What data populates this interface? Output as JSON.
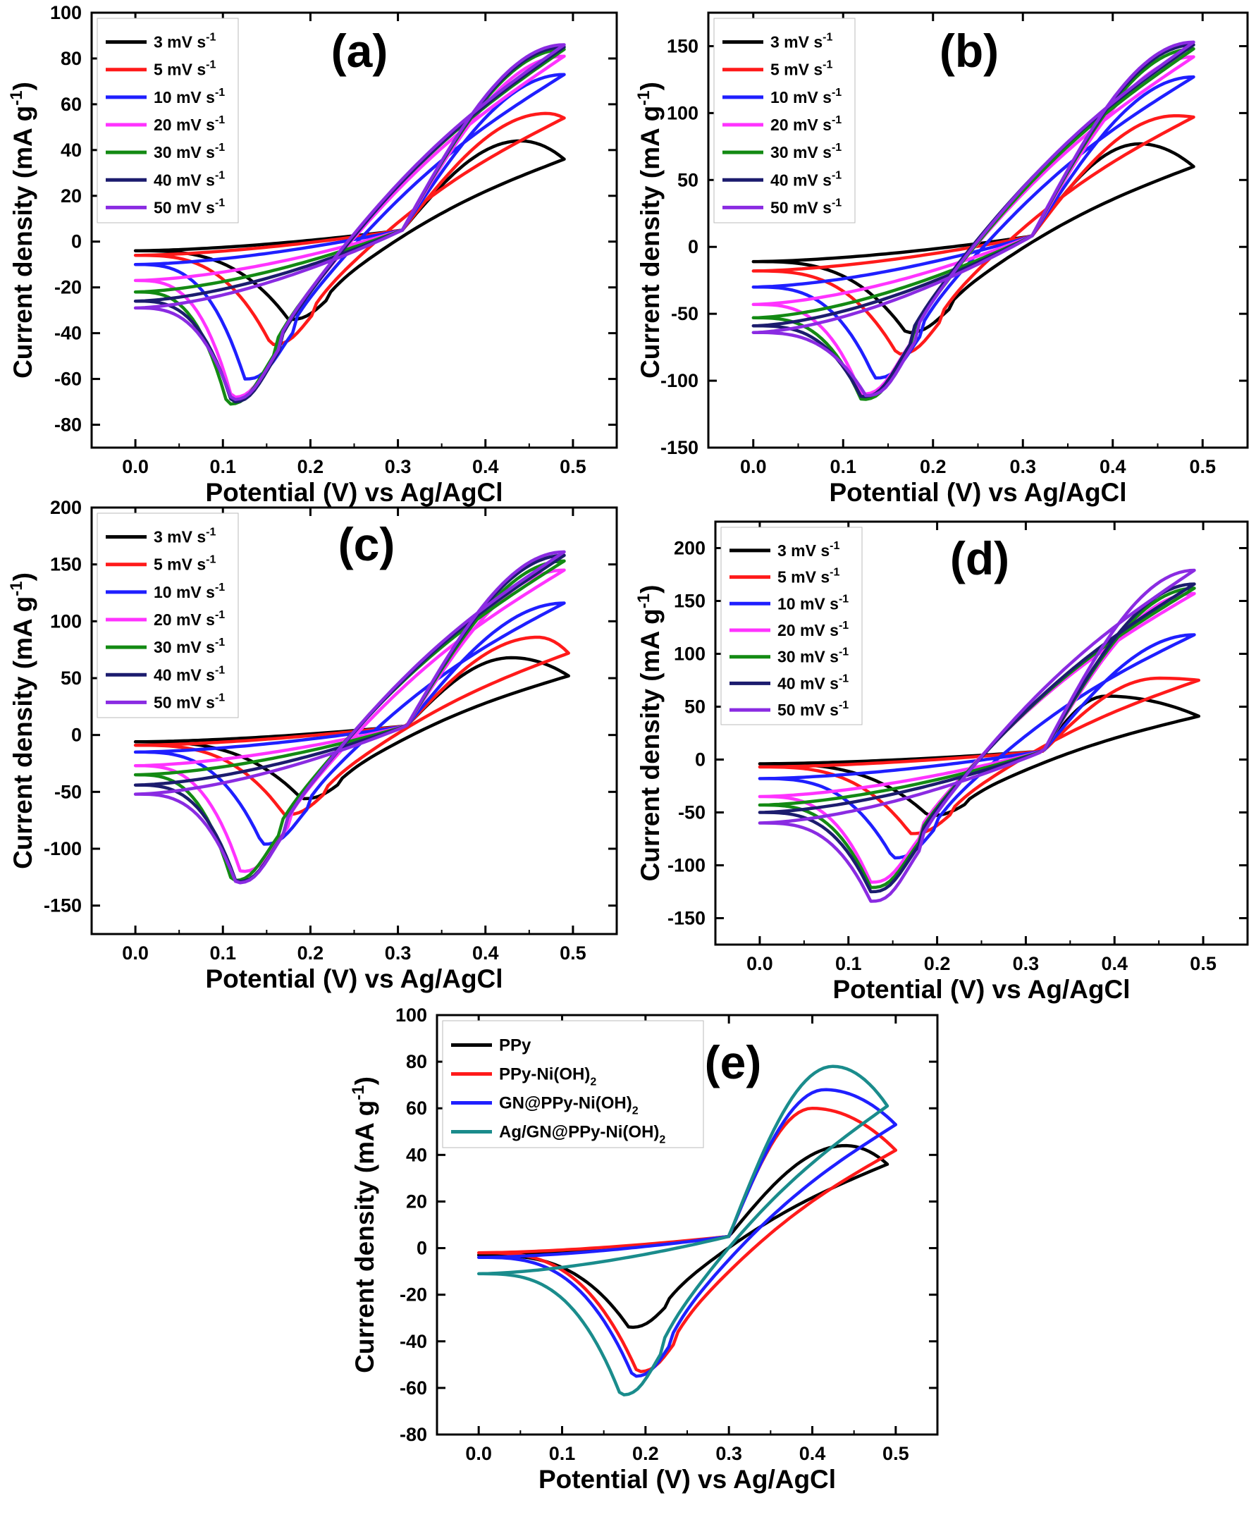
{
  "colors": {
    "black": "#000000",
    "red": "#ff1a1a",
    "blue": "#1f1fff",
    "magenta": "#ff33ff",
    "green": "#138a13",
    "navy": "#1c1c6e",
    "violet": "#8a2be2",
    "teal": "#1a8c8c"
  },
  "chart_data": [
    {
      "type": "line",
      "panel_label": "(a)",
      "xlabel": "Potential (V) vs Ag/AgCl",
      "ylabel": "Current density (mA g-1)",
      "ylabel_main": "Current density (mA g",
      "ylabel_sup": "-1",
      "ylabel_tail": ")",
      "xlim": [
        -0.05,
        0.55
      ],
      "ylim": [
        -90,
        100
      ],
      "xticks": [
        0.0,
        0.1,
        0.2,
        0.3,
        0.4,
        0.5
      ],
      "xtick_labels": [
        "0.0",
        "0.1",
        "0.2",
        "0.3",
        "0.4",
        "0.5"
      ],
      "yticks": [
        -80,
        -60,
        -40,
        -20,
        0,
        20,
        40,
        60,
        80,
        100
      ],
      "ytick_labels": [
        "-80",
        "-60",
        "-40",
        "-20",
        "0",
        "20",
        "40",
        "60",
        "80",
        "100"
      ],
      "legend_position": "top-left",
      "series": [
        {
          "name": "3 mV s-1",
          "label_main": "3 mV s",
          "label_sup": "-1",
          "color": "#000000",
          "cycle": {
            "x0": 0.0,
            "x1": 0.49,
            "y_start": -4,
            "y_end": 36,
            "peak_x": 0.44,
            "peak_y": 44,
            "valley_x": 0.175,
            "valley_y": -34,
            "cross_x": 0.305,
            "cross_y": 5
          }
        },
        {
          "name": "5 mV s-1",
          "label_main": "5 mV s",
          "label_sup": "-1",
          "color": "#ff1a1a",
          "cycle": {
            "x0": 0.0,
            "x1": 0.49,
            "y_start": -6,
            "y_end": 54,
            "peak_x": 0.47,
            "peak_y": 56,
            "valley_x": 0.155,
            "valley_y": -45,
            "cross_x": 0.305,
            "cross_y": 5
          }
        },
        {
          "name": "10 mV s-1",
          "label_main": "10 mV s",
          "label_sup": "-1",
          "color": "#1f1fff",
          "cycle": {
            "x0": 0.0,
            "x1": 0.49,
            "y_start": -10,
            "y_end": 73,
            "peak_x": 0.49,
            "peak_y": 73,
            "valley_x": 0.125,
            "valley_y": -60,
            "cross_x": 0.305,
            "cross_y": 5
          }
        },
        {
          "name": "20 mV s-1",
          "label_main": "20 mV s",
          "label_sup": "-1",
          "color": "#ff33ff",
          "cycle": {
            "x0": 0.0,
            "x1": 0.49,
            "y_start": -17,
            "y_end": 81,
            "peak_x": 0.49,
            "peak_y": 81,
            "valley_x": 0.11,
            "valley_y": -68,
            "cross_x": 0.305,
            "cross_y": 5
          }
        },
        {
          "name": "30 mV s-1",
          "label_main": "30 mV s",
          "label_sup": "-1",
          "color": "#138a13",
          "cycle": {
            "x0": 0.0,
            "x1": 0.49,
            "y_start": -22,
            "y_end": 84,
            "peak_x": 0.49,
            "peak_y": 84,
            "valley_x": 0.105,
            "valley_y": -71,
            "cross_x": 0.305,
            "cross_y": 5
          }
        },
        {
          "name": "40 mV s-1",
          "label_main": "40 mV s",
          "label_sup": "-1",
          "color": "#1c1c6e",
          "cycle": {
            "x0": 0.0,
            "x1": 0.49,
            "y_start": -26,
            "y_end": 85,
            "peak_x": 0.49,
            "peak_y": 85,
            "valley_x": 0.11,
            "valley_y": -70,
            "cross_x": 0.305,
            "cross_y": 5
          }
        },
        {
          "name": "50 mV s-1",
          "label_main": "50 mV s",
          "label_sup": "-1",
          "color": "#8a2be2",
          "cycle": {
            "x0": 0.0,
            "x1": 0.49,
            "y_start": -29,
            "y_end": 86,
            "peak_x": 0.49,
            "peak_y": 86,
            "valley_x": 0.11,
            "valley_y": -69,
            "cross_x": 0.305,
            "cross_y": 5
          }
        }
      ]
    },
    {
      "type": "line",
      "panel_label": "(b)",
      "xlabel": "Potential (V) vs Ag/AgCl",
      "ylabel": "Current density (mA g-1)",
      "ylabel_main": "Current density (mA g",
      "ylabel_sup": "-1",
      "ylabel_tail": ")",
      "xlim": [
        -0.05,
        0.55
      ],
      "ylim": [
        -150,
        175
      ],
      "xticks": [
        0.0,
        0.1,
        0.2,
        0.3,
        0.4,
        0.5
      ],
      "xtick_labels": [
        "0.0",
        "0.1",
        "0.2",
        "0.3",
        "0.4",
        "0.5"
      ],
      "yticks": [
        -150,
        -100,
        -50,
        0,
        50,
        100,
        150
      ],
      "ytick_labels": [
        "-150",
        "-100",
        "-50",
        "0",
        "50",
        "100",
        "150"
      ],
      "legend_position": "top-left",
      "series": [
        {
          "name": "3 mV s-1",
          "label_main": "3 mV s",
          "label_sup": "-1",
          "color": "#000000",
          "cycle": {
            "x0": 0.0,
            "x1": 0.49,
            "y_start": -11,
            "y_end": 60,
            "peak_x": 0.43,
            "peak_y": 77,
            "valley_x": 0.17,
            "valley_y": -64,
            "cross_x": 0.31,
            "cross_y": 8
          }
        },
        {
          "name": "5 mV s-1",
          "label_main": "5 mV s",
          "label_sup": "-1",
          "color": "#ff1a1a",
          "cycle": {
            "x0": 0.0,
            "x1": 0.49,
            "y_start": -18,
            "y_end": 97,
            "peak_x": 0.47,
            "peak_y": 98,
            "valley_x": 0.16,
            "valley_y": -80,
            "cross_x": 0.31,
            "cross_y": 8
          }
        },
        {
          "name": "10 mV s-1",
          "label_main": "10 mV s",
          "label_sup": "-1",
          "color": "#1f1fff",
          "cycle": {
            "x0": 0.0,
            "x1": 0.49,
            "y_start": -30,
            "y_end": 127,
            "peak_x": 0.49,
            "peak_y": 127,
            "valley_x": 0.135,
            "valley_y": -98,
            "cross_x": 0.31,
            "cross_y": 8
          }
        },
        {
          "name": "20 mV s-1",
          "label_main": "20 mV s",
          "label_sup": "-1",
          "color": "#ff33ff",
          "cycle": {
            "x0": 0.0,
            "x1": 0.49,
            "y_start": -43,
            "y_end": 142,
            "peak_x": 0.49,
            "peak_y": 142,
            "valley_x": 0.12,
            "valley_y": -110,
            "cross_x": 0.31,
            "cross_y": 8
          }
        },
        {
          "name": "30 mV s-1",
          "label_main": "30 mV s",
          "label_sup": "-1",
          "color": "#138a13",
          "cycle": {
            "x0": 0.0,
            "x1": 0.49,
            "y_start": -53,
            "y_end": 148,
            "peak_x": 0.49,
            "peak_y": 148,
            "valley_x": 0.12,
            "valley_y": -114,
            "cross_x": 0.31,
            "cross_y": 8
          }
        },
        {
          "name": "40 mV s-1",
          "label_main": "40 mV s",
          "label_sup": "-1",
          "color": "#1c1c6e",
          "cycle": {
            "x0": 0.0,
            "x1": 0.49,
            "y_start": -59,
            "y_end": 151,
            "peak_x": 0.49,
            "peak_y": 151,
            "valley_x": 0.12,
            "valley_y": -112,
            "cross_x": 0.31,
            "cross_y": 8
          }
        },
        {
          "name": "50 mV s-1",
          "label_main": "50 mV s",
          "label_sup": "-1",
          "color": "#8a2be2",
          "cycle": {
            "x0": 0.0,
            "x1": 0.49,
            "y_start": -64,
            "y_end": 153,
            "peak_x": 0.49,
            "peak_y": 153,
            "valley_x": 0.125,
            "valley_y": -111,
            "cross_x": 0.31,
            "cross_y": 8
          }
        }
      ]
    },
    {
      "type": "line",
      "panel_label": "(c)",
      "xlabel": "Potential (V) vs Ag/AgCl",
      "ylabel": "Current density (mA g-1)",
      "ylabel_main": "Current density (mA g",
      "ylabel_sup": "-1",
      "ylabel_tail": ")",
      "xlim": [
        -0.05,
        0.55
      ],
      "ylim": [
        -175,
        200
      ],
      "xticks": [
        0.0,
        0.1,
        0.2,
        0.3,
        0.4,
        0.5
      ],
      "xtick_labels": [
        "0.0",
        "0.1",
        "0.2",
        "0.3",
        "0.4",
        "0.5"
      ],
      "yticks": [
        -150,
        -100,
        -50,
        0,
        50,
        100,
        150,
        200
      ],
      "ytick_labels": [
        "-150",
        "-100",
        "-50",
        "0",
        "50",
        "100",
        "150",
        "200"
      ],
      "legend_position": "top-left",
      "series": [
        {
          "name": "3 mV s-1",
          "label_main": "3 mV s",
          "label_sup": "-1",
          "color": "#000000",
          "cycle": {
            "x0": 0.0,
            "x1": 0.495,
            "y_start": -6,
            "y_end": 52,
            "peak_x": 0.43,
            "peak_y": 68,
            "valley_x": 0.19,
            "valley_y": -56,
            "cross_x": 0.31,
            "cross_y": 8
          }
        },
        {
          "name": "5 mV s-1",
          "label_main": "5 mV s",
          "label_sup": "-1",
          "color": "#ff1a1a",
          "cycle": {
            "x0": 0.0,
            "x1": 0.495,
            "y_start": -9,
            "y_end": 72,
            "peak_x": 0.46,
            "peak_y": 86,
            "valley_x": 0.17,
            "valley_y": -70,
            "cross_x": 0.31,
            "cross_y": 8
          }
        },
        {
          "name": "10 mV s-1",
          "label_main": "10 mV s",
          "label_sup": "-1",
          "color": "#1f1fff",
          "cycle": {
            "x0": 0.0,
            "x1": 0.49,
            "y_start": -15,
            "y_end": 116,
            "peak_x": 0.49,
            "peak_y": 116,
            "valley_x": 0.145,
            "valley_y": -96,
            "cross_x": 0.31,
            "cross_y": 8
          }
        },
        {
          "name": "20 mV s-1",
          "label_main": "20 mV s",
          "label_sup": "-1",
          "color": "#ff33ff",
          "cycle": {
            "x0": 0.0,
            "x1": 0.49,
            "y_start": -27,
            "y_end": 145,
            "peak_x": 0.49,
            "peak_y": 145,
            "valley_x": 0.12,
            "valley_y": -120,
            "cross_x": 0.31,
            "cross_y": 8
          }
        },
        {
          "name": "30 mV s-1",
          "label_main": "30 mV s",
          "label_sup": "-1",
          "color": "#138a13",
          "cycle": {
            "x0": 0.0,
            "x1": 0.49,
            "y_start": -35,
            "y_end": 153,
            "peak_x": 0.49,
            "peak_y": 153,
            "valley_x": 0.11,
            "valley_y": -128,
            "cross_x": 0.31,
            "cross_y": 8
          }
        },
        {
          "name": "40 mV s-1",
          "label_main": "40 mV s",
          "label_sup": "-1",
          "color": "#1c1c6e",
          "cycle": {
            "x0": 0.0,
            "x1": 0.49,
            "y_start": -44,
            "y_end": 158,
            "peak_x": 0.49,
            "peak_y": 158,
            "valley_x": 0.115,
            "valley_y": -129,
            "cross_x": 0.31,
            "cross_y": 8
          }
        },
        {
          "name": "50 mV s-1",
          "label_main": "50 mV s",
          "label_sup": "-1",
          "color": "#8a2be2",
          "cycle": {
            "x0": 0.0,
            "x1": 0.49,
            "y_start": -52,
            "y_end": 161,
            "peak_x": 0.49,
            "peak_y": 161,
            "valley_x": 0.115,
            "valley_y": -130,
            "cross_x": 0.31,
            "cross_y": 8
          }
        }
      ]
    },
    {
      "type": "line",
      "panel_label": "(d)",
      "xlabel": "Potential (V) vs Ag/AgCl",
      "ylabel": "Current density (mA g-1)",
      "ylabel_main": "Current density (mA g",
      "ylabel_sup": "-1",
      "ylabel_tail": ")",
      "xlim": [
        -0.05,
        0.55
      ],
      "ylim": [
        -175,
        225
      ],
      "xticks": [
        0.0,
        0.1,
        0.2,
        0.3,
        0.4,
        0.5
      ],
      "xtick_labels": [
        "0.0",
        "0.1",
        "0.2",
        "0.3",
        "0.4",
        "0.5"
      ],
      "yticks": [
        -150,
        -100,
        -50,
        0,
        50,
        100,
        150,
        200
      ],
      "ytick_labels": [
        "-150",
        "-100",
        "-50",
        "0",
        "50",
        "100",
        "150",
        "200"
      ],
      "legend_position": "top-left",
      "series": [
        {
          "name": "3 mV s-1",
          "label_main": "3 mV s",
          "label_sup": "-1",
          "color": "#000000",
          "cycle": {
            "x0": 0.0,
            "x1": 0.495,
            "y_start": -4,
            "y_end": 41,
            "peak_x": 0.39,
            "peak_y": 60,
            "valley_x": 0.19,
            "valley_y": -53,
            "cross_x": 0.32,
            "cross_y": 8
          }
        },
        {
          "name": "5 mV s-1",
          "label_main": "5 mV s",
          "label_sup": "-1",
          "color": "#ff1a1a",
          "cycle": {
            "x0": 0.0,
            "x1": 0.495,
            "y_start": -7,
            "y_end": 75,
            "peak_x": 0.45,
            "peak_y": 77,
            "valley_x": 0.17,
            "valley_y": -70,
            "cross_x": 0.32,
            "cross_y": 8
          }
        },
        {
          "name": "10 mV s-1",
          "label_main": "10 mV s",
          "label_sup": "-1",
          "color": "#1f1fff",
          "cycle": {
            "x0": 0.0,
            "x1": 0.49,
            "y_start": -18,
            "y_end": 118,
            "peak_x": 0.49,
            "peak_y": 118,
            "valley_x": 0.15,
            "valley_y": -93,
            "cross_x": 0.32,
            "cross_y": 8
          }
        },
        {
          "name": "20 mV s-1",
          "label_main": "20 mV s",
          "label_sup": "-1",
          "color": "#ff33ff",
          "cycle": {
            "x0": 0.0,
            "x1": 0.49,
            "y_start": -35,
            "y_end": 157,
            "peak_x": 0.49,
            "peak_y": 157,
            "valley_x": 0.125,
            "valley_y": -116,
            "cross_x": 0.32,
            "cross_y": 8
          }
        },
        {
          "name": "30 mV s-1",
          "label_main": "30 mV s",
          "label_sup": "-1",
          "color": "#138a13",
          "cycle": {
            "x0": 0.0,
            "x1": 0.49,
            "y_start": -43,
            "y_end": 162,
            "peak_x": 0.49,
            "peak_y": 162,
            "valley_x": 0.125,
            "valley_y": -121,
            "cross_x": 0.32,
            "cross_y": 8
          }
        },
        {
          "name": "40 mV s-1",
          "label_main": "40 mV s",
          "label_sup": "-1",
          "color": "#1c1c6e",
          "cycle": {
            "x0": 0.0,
            "x1": 0.49,
            "y_start": -50,
            "y_end": 166,
            "peak_x": 0.49,
            "peak_y": 166,
            "valley_x": 0.125,
            "valley_y": -125,
            "cross_x": 0.32,
            "cross_y": 8
          }
        },
        {
          "name": "50 mV s-1",
          "label_main": "50 mV s",
          "label_sup": "-1",
          "color": "#8a2be2",
          "cycle": {
            "x0": 0.0,
            "x1": 0.49,
            "y_start": -60,
            "y_end": 179,
            "peak_x": 0.49,
            "peak_y": 179,
            "valley_x": 0.125,
            "valley_y": -134,
            "cross_x": 0.32,
            "cross_y": 8
          }
        }
      ]
    },
    {
      "type": "line",
      "panel_label": "(e)",
      "xlabel": "Potential (V) vs Ag/AgCl",
      "ylabel": "Current density (mA g-1)",
      "ylabel_main": "Current density (mA g",
      "ylabel_sup": "-1",
      "ylabel_tail": ")",
      "xlim": [
        -0.05,
        0.55
      ],
      "ylim": [
        -80,
        100
      ],
      "xticks": [
        0.0,
        0.1,
        0.2,
        0.3,
        0.4,
        0.5
      ],
      "xtick_labels": [
        "0.0",
        "0.1",
        "0.2",
        "0.3",
        "0.4",
        "0.5"
      ],
      "yticks": [
        -80,
        -60,
        -40,
        -20,
        0,
        20,
        40,
        60,
        80,
        100
      ],
      "ytick_labels": [
        "-80",
        "-60",
        "-40",
        "-20",
        "0",
        "20",
        "40",
        "60",
        "80",
        "100"
      ],
      "legend_position": "top-left",
      "series": [
        {
          "name": "PPy",
          "label_main": "PPy",
          "label_sub": "",
          "label_tail": "",
          "color": "#000000",
          "cycle": {
            "x0": 0.0,
            "x1": 0.49,
            "y_start": -3,
            "y_end": 36,
            "peak_x": 0.44,
            "peak_y": 44,
            "valley_x": 0.18,
            "valley_y": -34,
            "cross_x": 0.3,
            "cross_y": 5
          }
        },
        {
          "name": "PPy-Ni(OH)2",
          "label_main": "PPy-Ni(OH)",
          "label_sub": "2",
          "label_tail": "",
          "color": "#ff1a1a",
          "cycle": {
            "x0": 0.0,
            "x1": 0.5,
            "y_start": -2,
            "y_end": 42,
            "peak_x": 0.4,
            "peak_y": 60,
            "valley_x": 0.19,
            "valley_y": -53,
            "cross_x": 0.3,
            "cross_y": 5
          }
        },
        {
          "name": "GN@PPy-Ni(OH)2",
          "label_main": "GN@PPy-Ni(OH)",
          "label_sub": "2",
          "label_tail": "",
          "color": "#1f1fff",
          "cycle": {
            "x0": 0.0,
            "x1": 0.5,
            "y_start": -4,
            "y_end": 53,
            "peak_x": 0.415,
            "peak_y": 68,
            "valley_x": 0.185,
            "valley_y": -55,
            "cross_x": 0.3,
            "cross_y": 5
          }
        },
        {
          "name": "Ag/GN@PPy-Ni(OH)2",
          "label_main": "Ag/GN@PPy-Ni(OH)",
          "label_sub": "2",
          "label_tail": "",
          "color": "#1a8c8c",
          "cycle": {
            "x0": 0.0,
            "x1": 0.49,
            "y_start": -11,
            "y_end": 61,
            "peak_x": 0.425,
            "peak_y": 78,
            "valley_x": 0.17,
            "valley_y": -63,
            "cross_x": 0.3,
            "cross_y": 5
          }
        }
      ]
    }
  ]
}
